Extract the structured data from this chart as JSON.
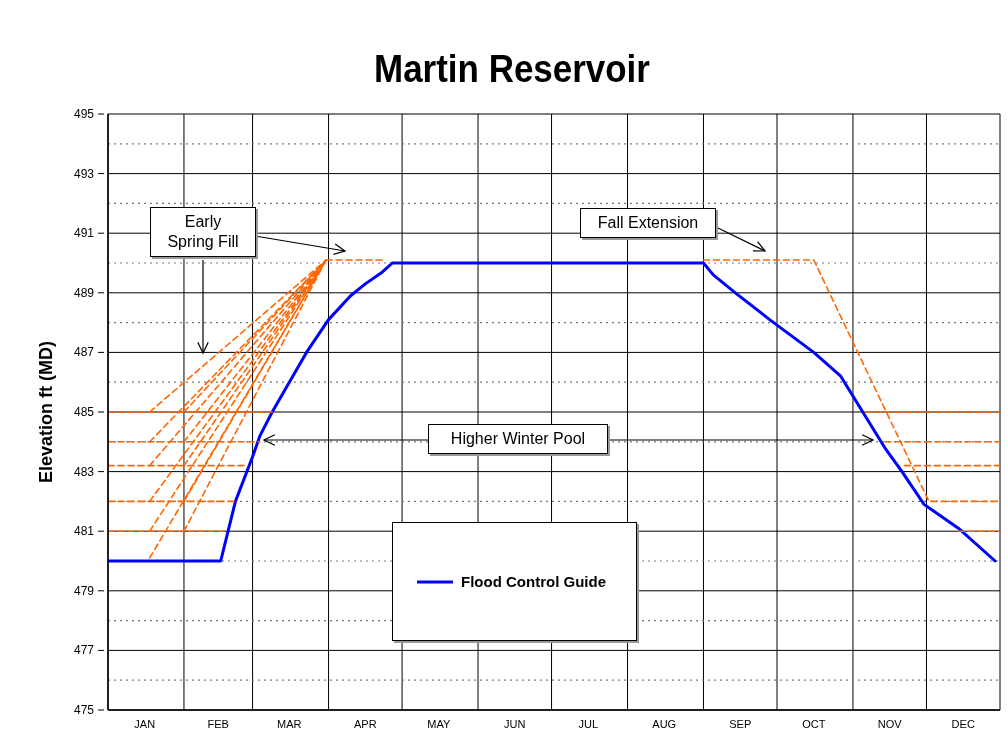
{
  "chart_data": {
    "type": "line",
    "title": "Martin Reservoir",
    "ylabel": "Elevation ft (MD)",
    "xlim": [
      "--01-01",
      "--12-31"
    ],
    "xticks": [
      {
        "value": "--01-01",
        "label": null
      },
      {
        "value": "--01-16",
        "label": "JAN"
      },
      {
        "value": "--02-01",
        "label": null
      },
      {
        "value": "--02-15",
        "label": "FEB"
      },
      {
        "value": "--03-01",
        "label": null
      },
      {
        "value": "--03-16",
        "label": "MAR"
      },
      {
        "value": "--04-01",
        "label": null
      },
      {
        "value": "--04-16",
        "label": "APR"
      },
      {
        "value": "--05-01",
        "label": null
      },
      {
        "value": "--05-16",
        "label": "MAY"
      },
      {
        "value": "--06-01",
        "label": null
      },
      {
        "value": "--06-16",
        "label": "JUN"
      },
      {
        "value": "--07-01",
        "label": null
      },
      {
        "value": "--07-16",
        "label": "JUL"
      },
      {
        "value": "--08-01",
        "label": null
      },
      {
        "value": "--08-16",
        "label": "AUG"
      },
      {
        "value": "--09-01",
        "label": null
      },
      {
        "value": "--09-16",
        "label": "SEP"
      },
      {
        "value": "--10-01",
        "label": null
      },
      {
        "value": "--10-16",
        "label": "OCT"
      },
      {
        "value": "--11-01",
        "label": null
      },
      {
        "value": "--11-16",
        "label": "NOV"
      },
      {
        "value": "--12-01",
        "label": null
      },
      {
        "value": "--12-16",
        "label": "DEC"
      },
      {
        "value": "--12-31",
        "label": null
      }
    ],
    "ylim": [
      475,
      495
    ],
    "yticks": [
      475,
      {
        "value": 476,
        "label": null
      },
      477,
      {
        "value": 478,
        "label": null
      },
      479,
      {
        "value": 480,
        "label": null
      },
      481,
      {
        "value": 482,
        "label": null
      },
      483,
      {
        "value": 484,
        "label": null
      },
      485,
      {
        "value": 486,
        "label": null
      },
      487,
      {
        "value": 488,
        "label": null
      },
      489,
      {
        "value": 490,
        "label": null
      },
      491,
      {
        "value": 492,
        "label": null
      },
      493,
      {
        "value": 494,
        "label": null
      },
      495
    ],
    "grid": true,
    "legend": "bottom",
    "marker": "none",
    "series": [
      {
        "name": "Flood Control Guide",
        "color": "#0000ff",
        "line_style": "solid",
        "x": [
          "--01-01",
          "--02-16",
          "--02-19",
          "--02-22",
          "--03-01",
          "--03-04",
          "--03-09",
          "--03-16",
          "--03-23",
          "--04-01",
          "--04-10",
          "--04-16",
          "--04-23",
          "--04-27",
          "--09-01",
          "--09-05",
          "--09-14",
          "--09-28",
          "--10-16",
          "--10-27",
          "--11-05",
          "--11-14",
          "--11-21",
          "--11-30",
          "--12-14",
          "--12-29"
        ],
        "values": [
          480,
          480,
          481,
          482,
          483.5,
          484.2,
          485,
          486,
          487,
          488.1,
          488.9,
          489.3,
          489.7,
          490,
          490,
          489.6,
          489,
          488.1,
          487,
          486.2,
          485,
          483.8,
          483,
          481.9,
          481.1,
          480
        ]
      },
      {
        "color": "#ff6600",
        "line_style": "dashed",
        "x": [
          "--01-01",
          "--03-09"
        ],
        "values": [
          485,
          485
        ]
      },
      {
        "color": "#ff6600",
        "line_style": "dashed",
        "x": [
          "--01-01",
          "--03-04"
        ],
        "values": [
          484,
          484
        ]
      },
      {
        "color": "#ff6600",
        "line_style": "dashed",
        "x": [
          "--01-01",
          "--02-27"
        ],
        "values": [
          483.2,
          483.2
        ]
      },
      {
        "color": "#ff6600",
        "line_style": "dashed",
        "x": [
          "--01-01",
          "--02-22"
        ],
        "values": [
          482,
          482
        ]
      },
      {
        "color": "#ff6600",
        "line_style": "dashed",
        "x": [
          "--01-01",
          "--02-18"
        ],
        "values": [
          481,
          481
        ]
      },
      {
        "color": "#ff6600",
        "line_style": "dashed",
        "x": [
          "--01-18",
          "--03-31"
        ],
        "values": [
          480.1,
          490.1
        ]
      },
      {
        "color": "#ff6600",
        "line_style": "dashed",
        "x": [
          "--01-18",
          "--03-31"
        ],
        "values": [
          481,
          490.1
        ]
      },
      {
        "color": "#ff6600",
        "line_style": "dashed",
        "x": [
          "--01-18",
          "--03-31"
        ],
        "values": [
          482,
          490.1
        ]
      },
      {
        "color": "#ff6600",
        "line_style": "dashed",
        "x": [
          "--01-18",
          "--03-31"
        ],
        "values": [
          483.2,
          490.1
        ]
      },
      {
        "color": "#ff6600",
        "line_style": "dashed",
        "x": [
          "--01-18",
          "--03-31"
        ],
        "values": [
          484,
          490.1
        ]
      },
      {
        "color": "#ff6600",
        "line_style": "dashed",
        "x": [
          "--01-18",
          "--03-31"
        ],
        "values": [
          485,
          490.1
        ]
      },
      {
        "color": "#ff6600",
        "line_style": "dashed",
        "x": [
          "--02-01",
          "--03-31"
        ],
        "values": [
          481,
          490.1
        ]
      },
      {
        "color": "#ff6600",
        "line_style": "dashed",
        "x": [
          "--02-01",
          "--03-31"
        ],
        "values": [
          482,
          490.1
        ]
      },
      {
        "color": "#ff6600",
        "line_style": "dashed",
        "x": [
          "--02-01",
          "--03-31"
        ],
        "values": [
          483.2,
          490.1
        ]
      },
      {
        "color": "#ff6600",
        "line_style": "dashed",
        "x": [
          "--02-01",
          "--03-31"
        ],
        "values": [
          484,
          490.1
        ]
      },
      {
        "color": "#ff6600",
        "line_style": "dashed",
        "x": [
          "--02-01",
          "--03-31"
        ],
        "values": [
          485,
          490.1
        ]
      },
      {
        "color": "#ff6600",
        "line_style": "dashed",
        "x": [
          "--03-31",
          "--04-24"
        ],
        "values": [
          490.1,
          490.1
        ]
      },
      {
        "color": "#ff6600",
        "line_style": "dashed",
        "x": [
          "--09-01",
          "--10-16",
          "--12-02",
          "--12-31"
        ],
        "values": [
          490.1,
          490.1,
          482,
          482
        ]
      },
      {
        "color": "#ff6600",
        "line_style": "dashed",
        "x": [
          "--11-06",
          "--12-31"
        ],
        "values": [
          485,
          485
        ]
      },
      {
        "color": "#ff6600",
        "line_style": "dashed",
        "x": [
          "--11-14",
          "--12-31"
        ],
        "values": [
          484,
          484
        ]
      },
      {
        "color": "#ff6600",
        "line_style": "dashed",
        "x": [
          "--11-22",
          "--12-31"
        ],
        "values": [
          483.2,
          483.2
        ]
      },
      {
        "color": "#ff6600",
        "line_style": "dashed",
        "x": [
          "--12-14",
          "--12-31"
        ],
        "values": [
          481,
          481
        ]
      }
    ],
    "annotations": [
      "Early Spring Fill",
      "Fall Extension",
      "Higher Winter Pool"
    ]
  }
}
